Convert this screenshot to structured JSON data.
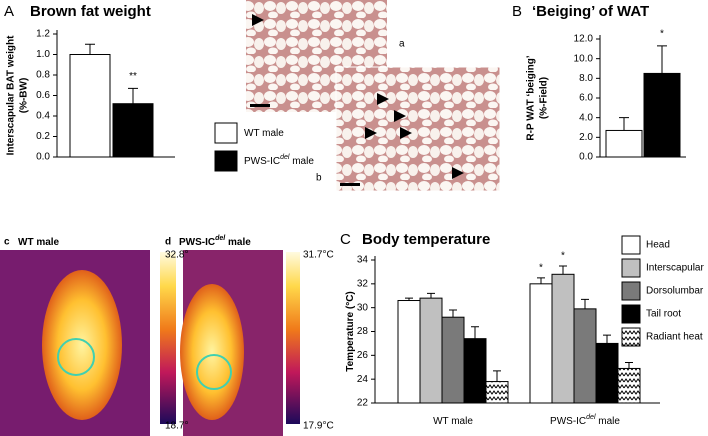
{
  "chart_data": [
    {
      "type": "bar",
      "label": "A",
      "title": "Brown fat weight",
      "ylabel": [
        "Interscapular BAT weight",
        "(%-BW)"
      ],
      "series": [
        {
          "name": [
            "WT male"
          ],
          "color": "#ffffff",
          "values": [
            1.0
          ],
          "errors": [
            0.1
          ]
        },
        {
          "name": [
            "PWS-IC",
            "del",
            " male"
          ],
          "color": "#000000",
          "values": [
            0.52
          ],
          "errors": [
            0.15
          ]
        }
      ],
      "ylim": [
        0,
        1.2
      ],
      "yticks": [
        {
          "value": 0,
          "label": "0.0"
        },
        {
          "value": 0.2,
          "label": "0.2"
        },
        {
          "value": 0.4,
          "label": "0.4"
        },
        {
          "value": 0.6,
          "label": "0.6"
        },
        {
          "value": 0.8,
          "label": "0.8"
        },
        {
          "value": 1.0,
          "label": "1.0"
        },
        {
          "value": 1.2,
          "label": "1.2"
        }
      ],
      "annotations": [
        "**"
      ]
    },
    {
      "type": "bar",
      "label": "B",
      "title": "‘Beiging’ of WAT",
      "ylabel": [
        "R-P WAT ‘beiging’",
        "(%-Field)"
      ],
      "series": [
        {
          "color": "#ffffff",
          "values": [
            2.7
          ],
          "errors": [
            1.3
          ]
        },
        {
          "color": "#000000",
          "values": [
            8.5
          ],
          "errors": [
            2.8
          ]
        }
      ],
      "ylim": [
        0,
        12
      ],
      "yticks": [
        {
          "value": 0,
          "label": "0.0"
        },
        {
          "value": 2,
          "label": "2.0"
        },
        {
          "value": 4,
          "label": "4.0"
        },
        {
          "value": 6,
          "label": "6.0"
        },
        {
          "value": 8,
          "label": "8.0"
        },
        {
          "value": 10,
          "label": "10.0"
        },
        {
          "value": 12,
          "label": "12.0"
        }
      ],
      "annotations": [
        "*"
      ]
    },
    {
      "type": "grouped-bar",
      "label": "C",
      "title": "Body temperature",
      "ylabel": [
        "Temperature (°C)"
      ],
      "categories": [
        [
          "WT male"
        ],
        [
          "PWS-IC",
          "del",
          " male"
        ]
      ],
      "series": [
        {
          "name": "Head",
          "color": "#ffffff",
          "values": [
            30.6,
            32.0
          ],
          "errors": [
            0.2,
            0.5
          ]
        },
        {
          "name": "Interscapular",
          "color": "#c0c0c0",
          "values": [
            30.8,
            32.8
          ],
          "errors": [
            0.4,
            0.7
          ]
        },
        {
          "name": "Dorsolumbar",
          "color": "#7a7a7a",
          "values": [
            29.2,
            29.9
          ],
          "errors": [
            0.6,
            0.8
          ]
        },
        {
          "name": "Tail root",
          "color": "#000000",
          "values": [
            27.4,
            27.0
          ],
          "errors": [
            1.0,
            0.7
          ]
        },
        {
          "name": "Radiant heat",
          "color": "zigzag",
          "values": [
            23.8,
            24.9
          ],
          "errors": [
            0.9,
            0.5
          ]
        }
      ],
      "ylim": [
        22,
        34
      ],
      "yticks": [
        22,
        24,
        26,
        28,
        30,
        32,
        34
      ],
      "annotations": [
        "*",
        "*"
      ]
    }
  ],
  "histology": {
    "a": "a",
    "b": "b"
  },
  "thermal": [
    {
      "letter": "c",
      "title": [
        "WT male"
      ],
      "scale_max": "32.8°",
      "scale_min": "18.7°"
    },
    {
      "letter": "d",
      "title": [
        "PWS-IC",
        "del",
        " male"
      ],
      "scale_max": "31.7°C",
      "scale_min": "17.9°C"
    }
  ]
}
